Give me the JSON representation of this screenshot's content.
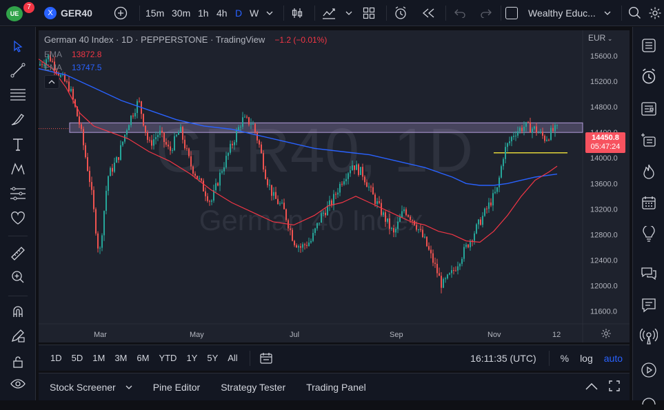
{
  "topbar": {
    "badge_count": "7",
    "symbol_icon_letter": "X",
    "symbol": "GER40",
    "intervals": [
      "15m",
      "30m",
      "1h",
      "4h",
      "D",
      "W"
    ],
    "active_interval": "D",
    "account": "Wealthy Educ..."
  },
  "legend": {
    "title": "German 40 Index · 1D · PEPPERSTONE · TradingView",
    "change": "−1.2 (−0.01%)",
    "ema1_label": "EMA",
    "ema1_value": "13872.8",
    "ema2_label": "EMA",
    "ema2_value": "13747.5"
  },
  "watermark": {
    "symbol": "GER40, 1D",
    "name": "German 40 Index"
  },
  "price_axis": {
    "currency": "EUR",
    "ticks": [
      "15600.0",
      "15200.0",
      "14800.0",
      "14400.0",
      "14000.0",
      "13600.0",
      "13200.0",
      "12800.0",
      "12400.0",
      "12000.0",
      "11600.0"
    ],
    "last_price": "14450.8",
    "countdown": "05:47:24"
  },
  "time_axis": {
    "labels": [
      "Mar",
      "May",
      "Jul",
      "Sep",
      "Nov",
      "12"
    ]
  },
  "bottom": {
    "ranges": [
      "1D",
      "5D",
      "1M",
      "3M",
      "6M",
      "YTD",
      "1Y",
      "5Y",
      "All"
    ],
    "clock": "16:11:35 (UTC)",
    "percent": "%",
    "log": "log",
    "auto": "auto"
  },
  "panels": [
    "Stock Screener",
    "Pine Editor",
    "Strategy Tester",
    "Trading Panel"
  ],
  "colors": {
    "up": "#26a69a",
    "down": "#ef5350",
    "ema_fast": "#f23645",
    "ema_slow": "#2962ff",
    "zone": "#b39ddb",
    "support": "#e2d43a",
    "accent": "#2962ff",
    "price_label": "#f7525f"
  },
  "chart_data": {
    "type": "candlestick",
    "y_range": [
      11400,
      16000
    ],
    "last_price": 14450.8,
    "resistance_zone": [
      14400,
      14550
    ],
    "support_line": 14080,
    "ema_fast_points": [
      [
        0,
        15550
      ],
      [
        20,
        15400
      ],
      [
        40,
        15100
      ],
      [
        60,
        14700
      ],
      [
        80,
        14500
      ],
      [
        100,
        14420
      ],
      [
        130,
        14300
      ],
      [
        160,
        14100
      ],
      [
        190,
        13950
      ],
      [
        220,
        13750
      ],
      [
        250,
        13500
      ],
      [
        280,
        13300
      ],
      [
        310,
        13150
      ],
      [
        340,
        13000
      ],
      [
        370,
        12950
      ],
      [
        400,
        13100
      ],
      [
        420,
        13250
      ],
      [
        440,
        13300
      ],
      [
        460,
        13400
      ],
      [
        480,
        13300
      ],
      [
        500,
        13200
      ],
      [
        520,
        13100
      ],
      [
        540,
        13000
      ],
      [
        560,
        12950
      ],
      [
        580,
        12850
      ],
      [
        600,
        12800
      ],
      [
        620,
        12700
      ],
      [
        640,
        12680
      ],
      [
        660,
        12850
      ],
      [
        680,
        13100
      ],
      [
        700,
        13400
      ],
      [
        720,
        13650
      ],
      [
        740,
        13780
      ],
      [
        752,
        13872
      ]
    ],
    "ema_slow_points": [
      [
        0,
        15400
      ],
      [
        40,
        15300
      ],
      [
        80,
        15100
      ],
      [
        120,
        14900
      ],
      [
        160,
        14750
      ],
      [
        200,
        14600
      ],
      [
        240,
        14500
      ],
      [
        280,
        14450
      ],
      [
        320,
        14350
      ],
      [
        360,
        14250
      ],
      [
        400,
        14150
      ],
      [
        440,
        14100
      ],
      [
        480,
        14050
      ],
      [
        520,
        13950
      ],
      [
        560,
        13850
      ],
      [
        600,
        13700
      ],
      [
        620,
        13600
      ],
      [
        640,
        13570
      ],
      [
        660,
        13570
      ],
      [
        680,
        13600
      ],
      [
        700,
        13650
      ],
      [
        720,
        13700
      ],
      [
        752,
        13747
      ]
    ]
  }
}
